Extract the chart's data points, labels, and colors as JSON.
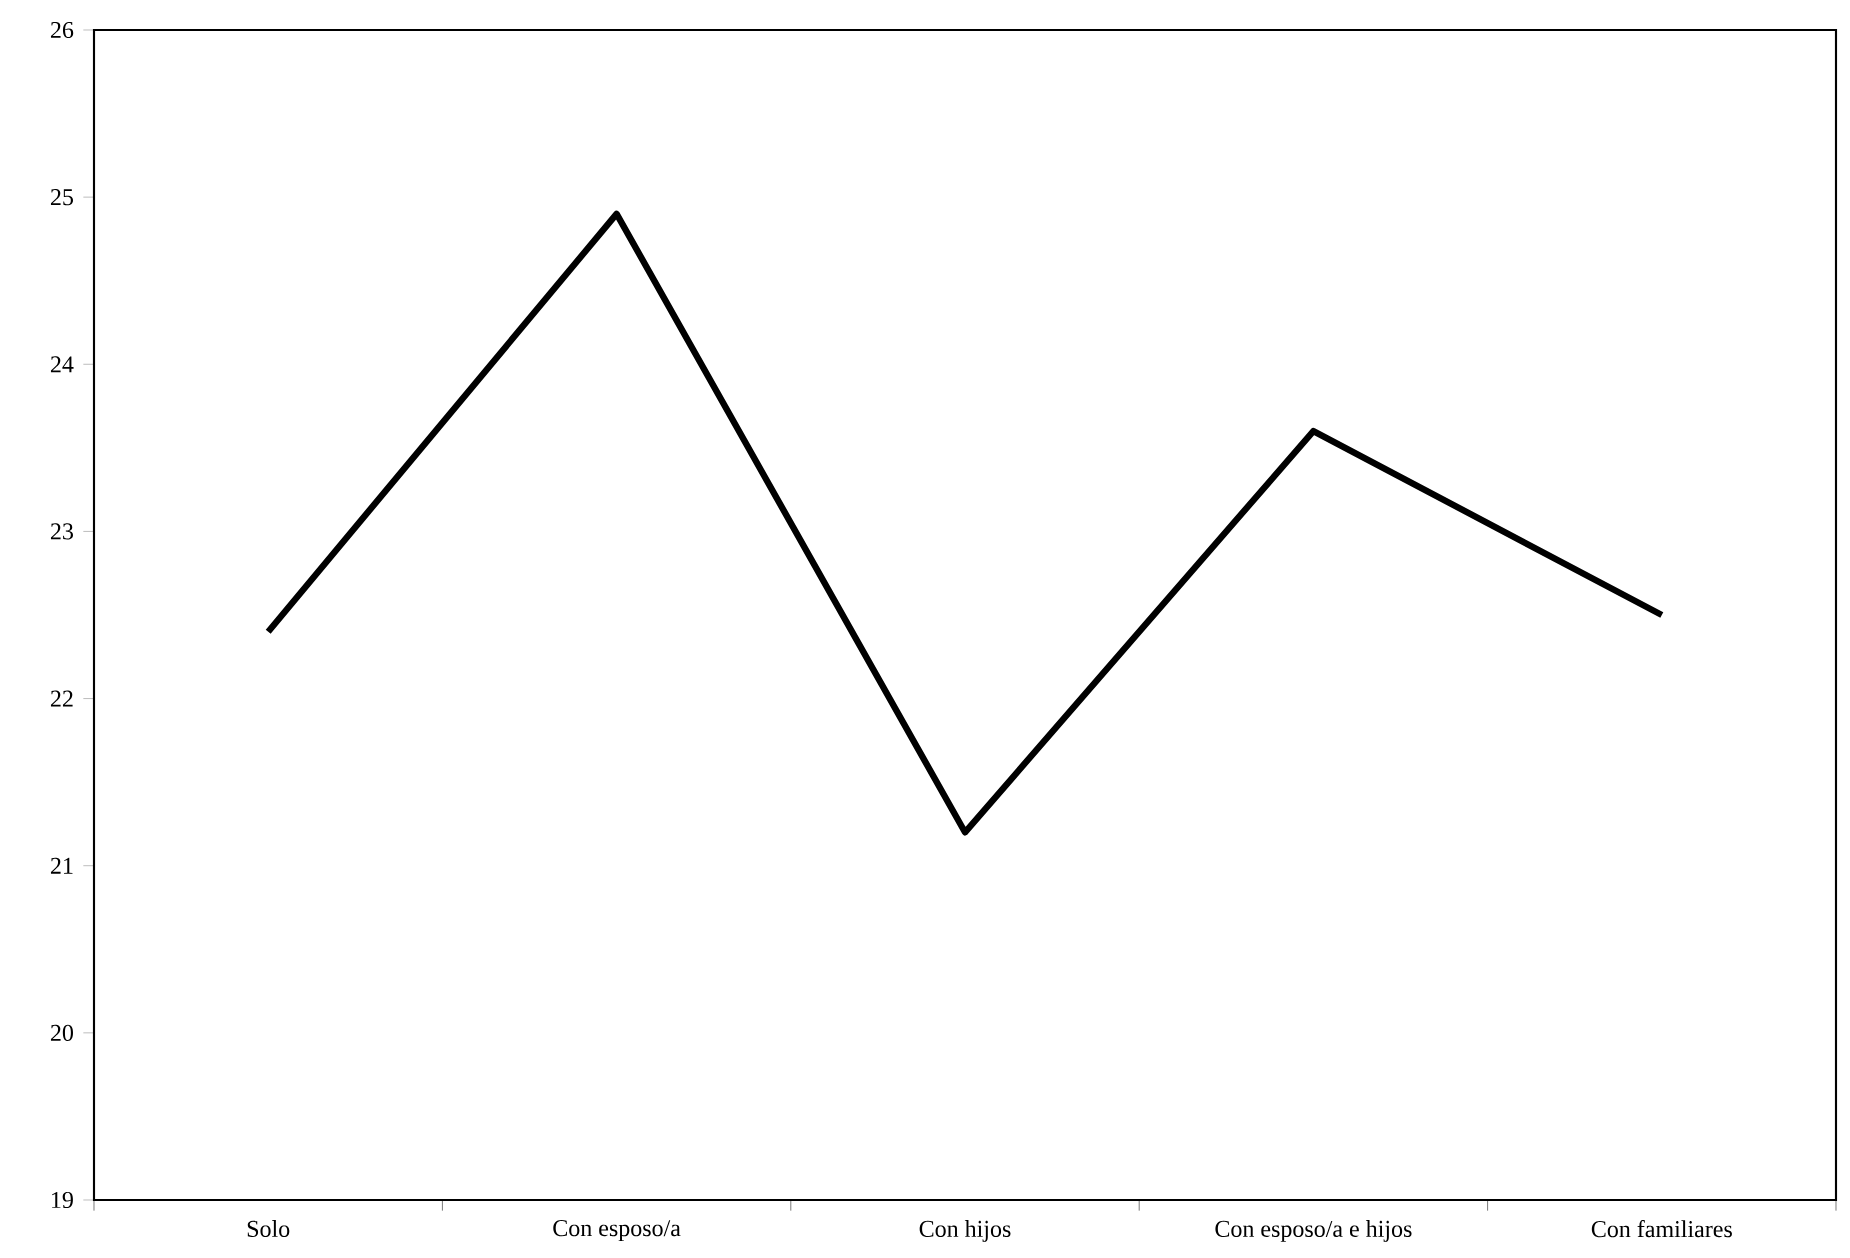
{
  "chart_data": {
    "type": "line",
    "categories": [
      "Solo",
      "Con esposo/a",
      "Con hijos",
      "Con esposo/a e hijos",
      "Con familiares"
    ],
    "series": [
      {
        "color": "#000000",
        "values": [
          22.4,
          24.9,
          21.2,
          23.6,
          22.5
        ]
      }
    ],
    "ylim": [
      19,
      26
    ],
    "yticks": [
      19,
      20,
      21,
      22,
      23,
      24,
      25,
      26
    ],
    "grid": false,
    "marker": "none",
    "line_style": "solid"
  }
}
